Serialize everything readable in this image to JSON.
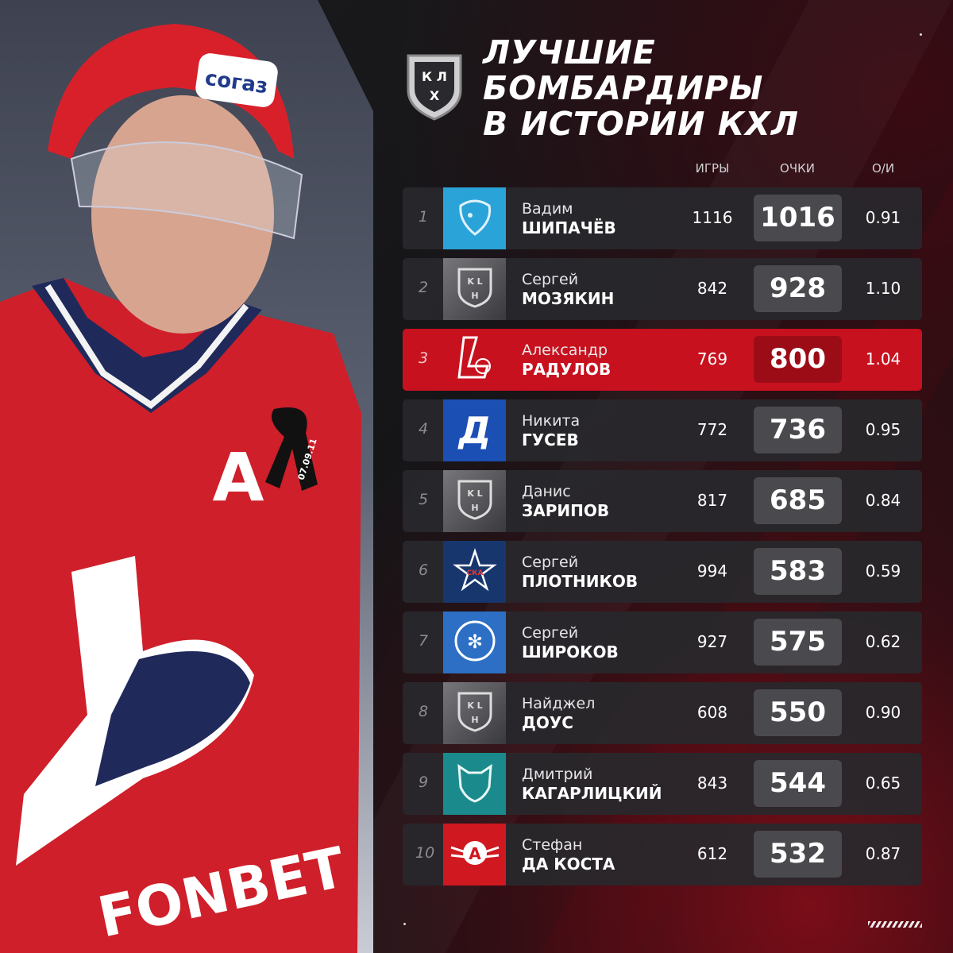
{
  "title": {
    "line1": "Лучшие",
    "line2": "бомбардиры",
    "line3": "в истории КХЛ"
  },
  "columns": {
    "games": "ИГРЫ",
    "points": "ОЧКИ",
    "ratio": "О/И"
  },
  "colors": {
    "highlight": "#c8111e",
    "row": "#28282c",
    "points_box": "#4a4a4e"
  },
  "rows": [
    {
      "rank": "1",
      "first": "Вадим",
      "last": "ШИПАЧЁВ",
      "games": "1116",
      "points": "1016",
      "ratio": "0.91",
      "logo": "bison-icon",
      "logo_bg": "#2aa3d8",
      "highlight": false
    },
    {
      "rank": "2",
      "first": "Сергей",
      "last": "МОЗЯКИН",
      "games": "842",
      "points": "928",
      "ratio": "1.10",
      "logo": "khl-icon",
      "logo_bg": "#5a5a5e",
      "highlight": false
    },
    {
      "rank": "3",
      "first": "Александр",
      "last": "РАДУЛОВ",
      "games": "769",
      "points": "800",
      "ratio": "1.04",
      "logo": "lokomotiv-icon",
      "logo_bg": "#c8111e",
      "highlight": true
    },
    {
      "rank": "4",
      "first": "Никита",
      "last": "ГУСЕВ",
      "games": "772",
      "points": "736",
      "ratio": "0.95",
      "logo": "dynamo-icon",
      "logo_bg": "#1b4fb3",
      "highlight": false
    },
    {
      "rank": "5",
      "first": "Данис",
      "last": "ЗАРИПОВ",
      "games": "817",
      "points": "685",
      "ratio": "0.84",
      "logo": "khl-icon",
      "logo_bg": "#5a5a5e",
      "highlight": false
    },
    {
      "rank": "6",
      "first": "Сергей",
      "last": "ПЛОТНИКОВ",
      "games": "994",
      "points": "583",
      "ratio": "0.59",
      "logo": "ska-star-icon",
      "logo_bg": "#17366e",
      "highlight": false
    },
    {
      "rank": "7",
      "first": "Сергей",
      "last": "ШИРОКОВ",
      "games": "927",
      "points": "575",
      "ratio": "0.62",
      "logo": "sibir-snowflake-icon",
      "logo_bg": "#2d6fc4",
      "highlight": false
    },
    {
      "rank": "8",
      "first": "Найджел",
      "last": "ДОУС",
      "games": "608",
      "points": "550",
      "ratio": "0.90",
      "logo": "khl-icon",
      "logo_bg": "#5a5a5e",
      "highlight": false
    },
    {
      "rank": "9",
      "first": "Дмитрий",
      "last": "КАГАРЛИЦКИЙ",
      "games": "843",
      "points": "544",
      "ratio": "0.65",
      "logo": "barys-leopard-icon",
      "logo_bg": "#1b8a8c",
      "highlight": false
    },
    {
      "rank": "10",
      "first": "Стефан",
      "last": "ДА КОСТА",
      "games": "612",
      "points": "532",
      "ratio": "0.87",
      "logo": "avtomobilist-icon",
      "logo_bg": "#d01820",
      "highlight": false
    }
  ],
  "photo": {
    "helmet_sponsor": "согаз",
    "jersey_letter": "A",
    "ribbon_date": "07.09.11",
    "ad_text": "FONBET"
  },
  "khl_logo_letters": "КХЛ"
}
